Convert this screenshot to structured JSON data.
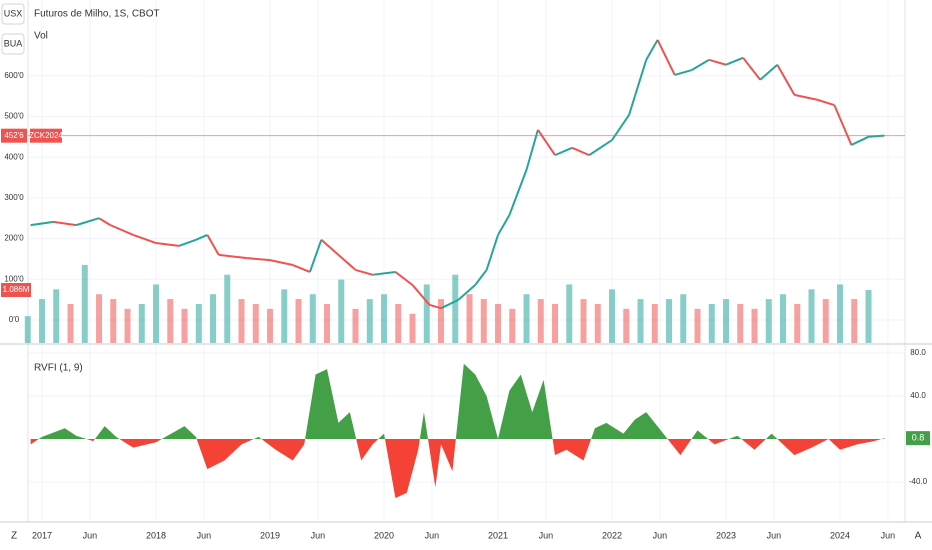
{
  "toolbar": {
    "currency": "USX",
    "mode": "BUA"
  },
  "footer": {
    "left": "Z",
    "right": "A"
  },
  "chart_data": [
    {
      "type": "line",
      "title": "Futuros de Milho, 1S, CBOT",
      "symbol": "ZCK2024",
      "x": [
        2016.9,
        2017.1,
        2017.3,
        2017.5,
        2017.6,
        2017.8,
        2018,
        2018.2,
        2018.35,
        2018.45,
        2018.55,
        2018.8,
        2019,
        2019.2,
        2019.35,
        2019.45,
        2019.6,
        2019.75,
        2019.9,
        2020.1,
        2020.25,
        2020.4,
        2020.5,
        2020.65,
        2020.8,
        2020.9,
        2021,
        2021.1,
        2021.25,
        2021.35,
        2021.5,
        2021.65,
        2021.8,
        2022,
        2022.15,
        2022.3,
        2022.4,
        2022.55,
        2022.7,
        2022.85,
        2023,
        2023.15,
        2023.3,
        2023.45,
        2023.6,
        2023.8,
        2023.95,
        2024.1,
        2024.25,
        2024.39
      ],
      "values": [
        233,
        241,
        233,
        250,
        233,
        209,
        189,
        182,
        197,
        209,
        160,
        152,
        147,
        135,
        118,
        197,
        160,
        123,
        111,
        118,
        86,
        37,
        29,
        49,
        86,
        123,
        209,
        258,
        369,
        467,
        405,
        423,
        405,
        442,
        504,
        639,
        688,
        602,
        614,
        639,
        627,
        644,
        590,
        627,
        553,
        541,
        528,
        430,
        450,
        452.75
      ],
      "up_color": "#26a69a",
      "down_color": "#ef5350",
      "last_color": "#ef5350",
      "last_price": {
        "value": 452.75,
        "label": "452'6"
      },
      "xlim": [
        2016.877,
        2024.57
      ],
      "xticks": [
        {
          "value": 2017,
          "label": "2017"
        },
        {
          "value": 2017.42,
          "label": "Jun"
        },
        {
          "value": 2018,
          "label": "2018"
        },
        {
          "value": 2018.42,
          "label": "Jun"
        },
        {
          "value": 2019,
          "label": "2019"
        },
        {
          "value": 2019.42,
          "label": "Jun"
        },
        {
          "value": 2020,
          "label": "2020"
        },
        {
          "value": 2020.42,
          "label": "Jun"
        },
        {
          "value": 2021,
          "label": "2021"
        },
        {
          "value": 2021.42,
          "label": "Jun"
        },
        {
          "value": 2022,
          "label": "2022"
        },
        {
          "value": 2022.42,
          "label": "Jun"
        },
        {
          "value": 2023,
          "label": "2023"
        },
        {
          "value": 2023.42,
          "label": "Jun"
        },
        {
          "value": 2024,
          "label": "2024"
        },
        {
          "value": 2024.42,
          "label": "Jun"
        }
      ],
      "ylim": [
        -56.5,
        786
      ],
      "yticks": [
        {
          "value": 600,
          "label": "600'0"
        },
        {
          "value": 500,
          "label": "500'0"
        },
        {
          "value": 400,
          "label": "400'0"
        },
        {
          "value": 300,
          "label": "300'0"
        },
        {
          "value": 200,
          "label": "200'0"
        },
        {
          "value": 100,
          "label": "100'0"
        },
        {
          "value": 0,
          "label": "0'0"
        }
      ],
      "grid": true
    },
    {
      "type": "bar",
      "title": "Vol",
      "x": [
        2016.875,
        2017,
        2017.125,
        2017.25,
        2017.375,
        2017.5,
        2017.625,
        2017.75,
        2017.875,
        2018,
        2018.125,
        2018.25,
        2018.375,
        2018.5,
        2018.625,
        2018.75,
        2018.875,
        2019,
        2019.125,
        2019.25,
        2019.375,
        2019.5,
        2019.625,
        2019.75,
        2019.875,
        2020,
        2020.125,
        2020.25,
        2020.375,
        2020.5,
        2020.625,
        2020.75,
        2020.875,
        2021,
        2021.125,
        2021.25,
        2021.375,
        2021.5,
        2021.625,
        2021.75,
        2021.875,
        2022,
        2022.125,
        2022.25,
        2022.375,
        2022.5,
        2022.625,
        2022.75,
        2022.875,
        2023,
        2023.125,
        2023.25,
        2023.375,
        2023.5,
        2023.625,
        2023.75,
        2023.875,
        2024,
        2024.125,
        2024.25
      ],
      "values": [
        550000,
        900000,
        1100000,
        800000,
        1600000,
        1000000,
        900000,
        700000,
        800000,
        1200000,
        900000,
        700000,
        800000,
        1000000,
        1400000,
        900000,
        800000,
        700000,
        1100000,
        900000,
        1000000,
        800000,
        1300000,
        700000,
        900000,
        1000000,
        800000,
        600000,
        1200000,
        900000,
        1400000,
        1000000,
        900000,
        800000,
        700000,
        1000000,
        900000,
        800000,
        1200000,
        900000,
        800000,
        1100000,
        700000,
        900000,
        800000,
        900000,
        1000000,
        700000,
        800000,
        900000,
        800000,
        700000,
        900000,
        1000000,
        800000,
        1100000,
        900000,
        1200000,
        900000,
        1086000
      ],
      "ylim": [
        0,
        1660000
      ],
      "up_color": "rgba(38,166,154,0.55)",
      "down_color": "rgba(239,83,80,0.55)",
      "last_value": {
        "value": 1086000,
        "label": "1.086M"
      }
    },
    {
      "type": "area",
      "title": "RVFI (1, 9)",
      "x": [
        2016.9,
        2017,
        2017.2,
        2017.3,
        2017.45,
        2017.55,
        2017.65,
        2017.8,
        2018,
        2018.1,
        2018.25,
        2018.35,
        2018.45,
        2018.6,
        2018.75,
        2018.9,
        2019.05,
        2019.2,
        2019.3,
        2019.4,
        2019.5,
        2019.6,
        2019.7,
        2019.8,
        2019.9,
        2020,
        2020.1,
        2020.2,
        2020.3,
        2020.35,
        2020.45,
        2020.5,
        2020.6,
        2020.7,
        2020.8,
        2020.9,
        2021,
        2021.1,
        2021.2,
        2021.3,
        2021.4,
        2021.5,
        2021.6,
        2021.75,
        2021.85,
        2021.95,
        2022.1,
        2022.2,
        2022.3,
        2022.45,
        2022.6,
        2022.75,
        2022.9,
        2023.1,
        2023.25,
        2023.4,
        2023.5,
        2023.6,
        2023.75,
        2023.9,
        2024,
        2024.15,
        2024.3,
        2024.39
      ],
      "values": [
        -5,
        2,
        10,
        3,
        -2,
        12,
        2,
        -8,
        -3,
        3,
        12,
        2,
        -28,
        -20,
        -5,
        2,
        -10,
        -20,
        -5,
        60,
        65,
        15,
        25,
        -20,
        -5,
        5,
        -55,
        -50,
        -10,
        25,
        -45,
        -5,
        -30,
        70,
        60,
        40,
        0,
        45,
        60,
        25,
        55,
        -15,
        -10,
        -20,
        10,
        15,
        5,
        18,
        25,
        5,
        -15,
        8,
        -5,
        3,
        -10,
        5,
        -5,
        -15,
        -8,
        0,
        -10,
        -5,
        -2,
        0.8
      ],
      "ylim": [
        -75.3,
        87.4
      ],
      "yticks": [
        {
          "value": 80,
          "label": "80.0"
        },
        {
          "value": 40,
          "label": "40.0"
        },
        {
          "value": -40,
          "label": "-40.0"
        }
      ],
      "up_color": "#43a047",
      "down_color": "#f44336",
      "last_value": 0.8,
      "grid": true
    }
  ]
}
